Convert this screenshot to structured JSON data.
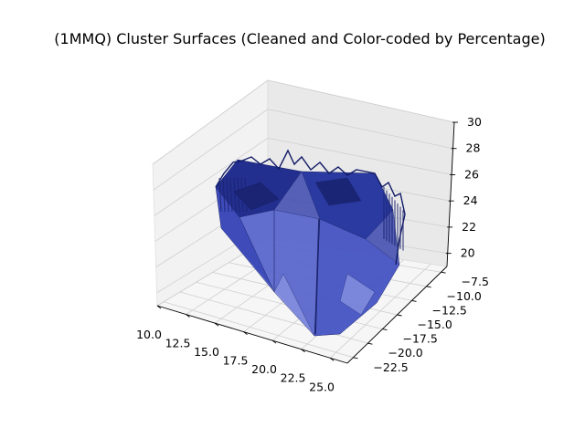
{
  "chart_data": {
    "type": "3d-surface",
    "title": "(1MMQ) Cluster Surfaces (Cleaned and Color-coded by Percentage)",
    "xlabel": "",
    "ylabel": "",
    "zlabel": "",
    "x_ticks": [
      "10.0",
      "12.5",
      "15.0",
      "17.5",
      "20.0",
      "22.5",
      "25.0"
    ],
    "y_ticks": [
      "-7.5",
      "-10.0",
      "-12.5",
      "-15.0",
      "-17.5",
      "-20.0",
      "-22.5"
    ],
    "z_ticks": [
      "20",
      "22",
      "24",
      "26",
      "28",
      "30"
    ],
    "xlim": [
      10.0,
      26.5
    ],
    "ylim": [
      -23.5,
      -6.5
    ],
    "zlim": [
      19,
      30
    ],
    "grid": true,
    "series": [
      {
        "color": "#2b3aa8",
        "edge_color": "#0f1a5e"
      }
    ],
    "pane_color": "#f2f2f2"
  }
}
